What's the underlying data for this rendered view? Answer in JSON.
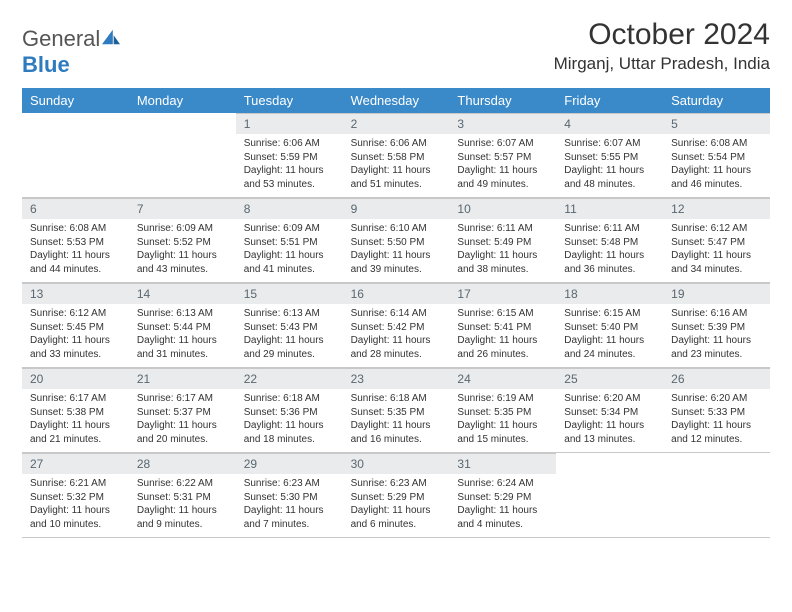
{
  "logo": {
    "text_general": "General",
    "text_blue": "Blue"
  },
  "title": "October 2024",
  "location": "Mirganj, Uttar Pradesh, India",
  "day_headers": [
    "Sunday",
    "Monday",
    "Tuesday",
    "Wednesday",
    "Thursday",
    "Friday",
    "Saturday"
  ],
  "colors": {
    "header_bg": "#3a89c9",
    "daynum_bg": "#e9ebed",
    "border": "#c8c8c8",
    "text": "#333333",
    "logo_blue": "#2f7bbf"
  },
  "weeks": [
    [
      null,
      null,
      {
        "n": "1",
        "sr": "Sunrise: 6:06 AM",
        "ss": "Sunset: 5:59 PM",
        "dl": "Daylight: 11 hours and 53 minutes."
      },
      {
        "n": "2",
        "sr": "Sunrise: 6:06 AM",
        "ss": "Sunset: 5:58 PM",
        "dl": "Daylight: 11 hours and 51 minutes."
      },
      {
        "n": "3",
        "sr": "Sunrise: 6:07 AM",
        "ss": "Sunset: 5:57 PM",
        "dl": "Daylight: 11 hours and 49 minutes."
      },
      {
        "n": "4",
        "sr": "Sunrise: 6:07 AM",
        "ss": "Sunset: 5:55 PM",
        "dl": "Daylight: 11 hours and 48 minutes."
      },
      {
        "n": "5",
        "sr": "Sunrise: 6:08 AM",
        "ss": "Sunset: 5:54 PM",
        "dl": "Daylight: 11 hours and 46 minutes."
      }
    ],
    [
      {
        "n": "6",
        "sr": "Sunrise: 6:08 AM",
        "ss": "Sunset: 5:53 PM",
        "dl": "Daylight: 11 hours and 44 minutes."
      },
      {
        "n": "7",
        "sr": "Sunrise: 6:09 AM",
        "ss": "Sunset: 5:52 PM",
        "dl": "Daylight: 11 hours and 43 minutes."
      },
      {
        "n": "8",
        "sr": "Sunrise: 6:09 AM",
        "ss": "Sunset: 5:51 PM",
        "dl": "Daylight: 11 hours and 41 minutes."
      },
      {
        "n": "9",
        "sr": "Sunrise: 6:10 AM",
        "ss": "Sunset: 5:50 PM",
        "dl": "Daylight: 11 hours and 39 minutes."
      },
      {
        "n": "10",
        "sr": "Sunrise: 6:11 AM",
        "ss": "Sunset: 5:49 PM",
        "dl": "Daylight: 11 hours and 38 minutes."
      },
      {
        "n": "11",
        "sr": "Sunrise: 6:11 AM",
        "ss": "Sunset: 5:48 PM",
        "dl": "Daylight: 11 hours and 36 minutes."
      },
      {
        "n": "12",
        "sr": "Sunrise: 6:12 AM",
        "ss": "Sunset: 5:47 PM",
        "dl": "Daylight: 11 hours and 34 minutes."
      }
    ],
    [
      {
        "n": "13",
        "sr": "Sunrise: 6:12 AM",
        "ss": "Sunset: 5:45 PM",
        "dl": "Daylight: 11 hours and 33 minutes."
      },
      {
        "n": "14",
        "sr": "Sunrise: 6:13 AM",
        "ss": "Sunset: 5:44 PM",
        "dl": "Daylight: 11 hours and 31 minutes."
      },
      {
        "n": "15",
        "sr": "Sunrise: 6:13 AM",
        "ss": "Sunset: 5:43 PM",
        "dl": "Daylight: 11 hours and 29 minutes."
      },
      {
        "n": "16",
        "sr": "Sunrise: 6:14 AM",
        "ss": "Sunset: 5:42 PM",
        "dl": "Daylight: 11 hours and 28 minutes."
      },
      {
        "n": "17",
        "sr": "Sunrise: 6:15 AM",
        "ss": "Sunset: 5:41 PM",
        "dl": "Daylight: 11 hours and 26 minutes."
      },
      {
        "n": "18",
        "sr": "Sunrise: 6:15 AM",
        "ss": "Sunset: 5:40 PM",
        "dl": "Daylight: 11 hours and 24 minutes."
      },
      {
        "n": "19",
        "sr": "Sunrise: 6:16 AM",
        "ss": "Sunset: 5:39 PM",
        "dl": "Daylight: 11 hours and 23 minutes."
      }
    ],
    [
      {
        "n": "20",
        "sr": "Sunrise: 6:17 AM",
        "ss": "Sunset: 5:38 PM",
        "dl": "Daylight: 11 hours and 21 minutes."
      },
      {
        "n": "21",
        "sr": "Sunrise: 6:17 AM",
        "ss": "Sunset: 5:37 PM",
        "dl": "Daylight: 11 hours and 20 minutes."
      },
      {
        "n": "22",
        "sr": "Sunrise: 6:18 AM",
        "ss": "Sunset: 5:36 PM",
        "dl": "Daylight: 11 hours and 18 minutes."
      },
      {
        "n": "23",
        "sr": "Sunrise: 6:18 AM",
        "ss": "Sunset: 5:35 PM",
        "dl": "Daylight: 11 hours and 16 minutes."
      },
      {
        "n": "24",
        "sr": "Sunrise: 6:19 AM",
        "ss": "Sunset: 5:35 PM",
        "dl": "Daylight: 11 hours and 15 minutes."
      },
      {
        "n": "25",
        "sr": "Sunrise: 6:20 AM",
        "ss": "Sunset: 5:34 PM",
        "dl": "Daylight: 11 hours and 13 minutes."
      },
      {
        "n": "26",
        "sr": "Sunrise: 6:20 AM",
        "ss": "Sunset: 5:33 PM",
        "dl": "Daylight: 11 hours and 12 minutes."
      }
    ],
    [
      {
        "n": "27",
        "sr": "Sunrise: 6:21 AM",
        "ss": "Sunset: 5:32 PM",
        "dl": "Daylight: 11 hours and 10 minutes."
      },
      {
        "n": "28",
        "sr": "Sunrise: 6:22 AM",
        "ss": "Sunset: 5:31 PM",
        "dl": "Daylight: 11 hours and 9 minutes."
      },
      {
        "n": "29",
        "sr": "Sunrise: 6:23 AM",
        "ss": "Sunset: 5:30 PM",
        "dl": "Daylight: 11 hours and 7 minutes."
      },
      {
        "n": "30",
        "sr": "Sunrise: 6:23 AM",
        "ss": "Sunset: 5:29 PM",
        "dl": "Daylight: 11 hours and 6 minutes."
      },
      {
        "n": "31",
        "sr": "Sunrise: 6:24 AM",
        "ss": "Sunset: 5:29 PM",
        "dl": "Daylight: 11 hours and 4 minutes."
      },
      null,
      null
    ]
  ]
}
